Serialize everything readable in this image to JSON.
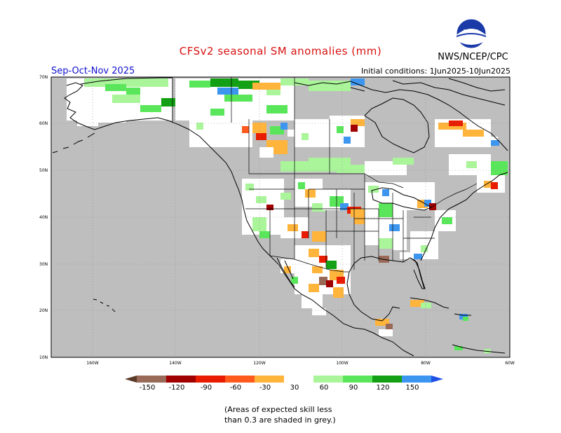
{
  "title": "CFSv2 seasonal SM anomalies (mm)",
  "agency": "NWS/NCEP/CPC",
  "logo_text": "NOAA",
  "season": "Sep-Oct-Nov 2025",
  "initial_conditions": "Initial conditions: 1Jun2025-10Jun2025",
  "latitude_labels": [
    "70N",
    "60N",
    "50N",
    "40N",
    "30N",
    "20N",
    "10N"
  ],
  "longitude_labels": [
    "160W",
    "140W",
    "120W",
    "100W",
    "80W",
    "60W"
  ],
  "legend": {
    "labels": [
      "-150",
      "-120",
      "-90",
      "-60",
      "-30",
      "30",
      "60",
      "90",
      "120",
      "150"
    ],
    "colors": [
      "#5a3a28",
      "#9a6a58",
      "#a00000",
      "#e81c00",
      "#ff5a1e",
      "#ffb43c",
      "#ffffff",
      "#aaf59a",
      "#5ae65a",
      "#14a014",
      "#3c96f0",
      "#1e50e6"
    ]
  },
  "colors": {
    "title": "#d81010",
    "season": "#1010d0",
    "low_skill_grey": "#bebebe"
  },
  "note": {
    "line1": "(Areas of expected skill less",
    "line2": "than 0.3 are shaded in grey.)"
  }
}
